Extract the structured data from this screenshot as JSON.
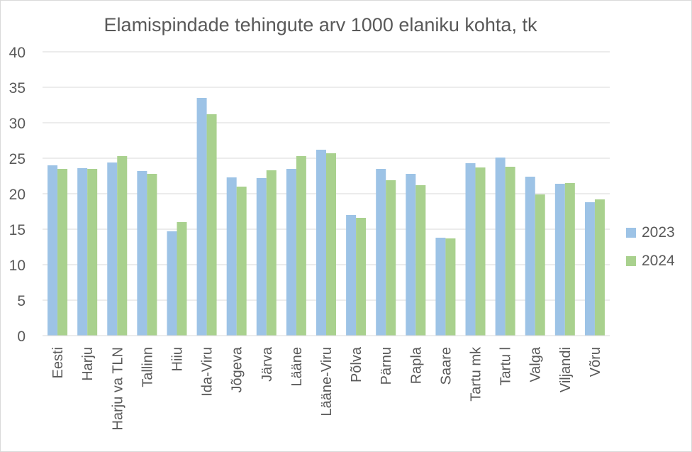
{
  "chart_data": {
    "type": "bar",
    "title": "Elamispindade tehingute arv 1000 elaniku kohta, tk",
    "xlabel": "",
    "ylabel": "",
    "ylim": [
      0,
      40
    ],
    "yticks": [
      0,
      5,
      10,
      15,
      20,
      25,
      30,
      35,
      40
    ],
    "grid": true,
    "legend_position": "right",
    "categories": [
      "Eesti",
      "Harju",
      "Harju va TLN",
      "Tallinn",
      "Hiiu",
      "Ida-Viru",
      "Jõgeva",
      "Järva",
      "Lääne",
      "Lääne-Viru",
      "Põlva",
      "Pärnu",
      "Rapla",
      "Saare",
      "Tartu mk",
      "Tartu l",
      "Valga",
      "Viljandi",
      "Võru"
    ],
    "series": [
      {
        "name": "2023",
        "color": "#9dc3e6",
        "values": [
          24.0,
          23.6,
          24.4,
          23.2,
          14.7,
          33.5,
          22.3,
          22.2,
          23.5,
          26.2,
          17.0,
          23.5,
          22.8,
          13.8,
          24.3,
          25.1,
          22.4,
          21.4,
          18.8
        ]
      },
      {
        "name": "2024",
        "color": "#a9d18e",
        "values": [
          23.5,
          23.5,
          25.3,
          22.8,
          16.0,
          31.2,
          21.0,
          23.3,
          25.3,
          25.7,
          16.6,
          21.9,
          21.2,
          13.7,
          23.7,
          23.8,
          19.9,
          21.5,
          19.2
        ]
      }
    ]
  }
}
